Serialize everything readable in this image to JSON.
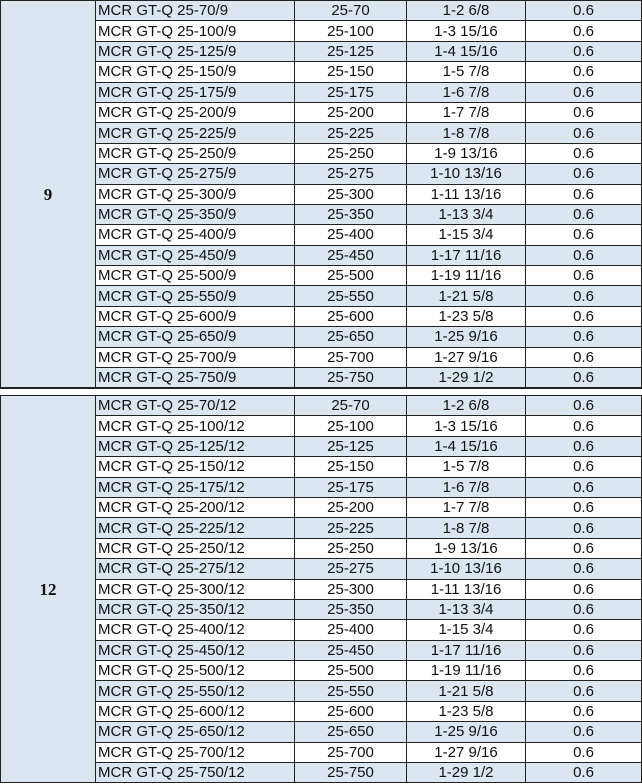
{
  "colors": {
    "row_shade": "#dce6f1",
    "border": "#222222"
  },
  "groups": [
    {
      "label": "9",
      "rows": [
        [
          "MCR GT-Q 25-70/9",
          "25-70",
          "1-2 6/8",
          "0.6"
        ],
        [
          "MCR GT-Q 25-100/9",
          "25-100",
          "1-3 15/16",
          "0.6"
        ],
        [
          "MCR GT-Q 25-125/9",
          "25-125",
          "1-4 15/16",
          "0.6"
        ],
        [
          "MCR GT-Q 25-150/9",
          "25-150",
          "1-5 7/8",
          "0.6"
        ],
        [
          "MCR GT-Q 25-175/9",
          "25-175",
          "1-6 7/8",
          "0.6"
        ],
        [
          "MCR GT-Q 25-200/9",
          "25-200",
          "1-7 7/8",
          "0.6"
        ],
        [
          "MCR GT-Q 25-225/9",
          "25-225",
          "1-8 7/8",
          "0.6"
        ],
        [
          "MCR GT-Q 25-250/9",
          "25-250",
          "1-9 13/16",
          "0.6"
        ],
        [
          "MCR GT-Q 25-275/9",
          "25-275",
          "1-10 13/16",
          "0.6"
        ],
        [
          "MCR GT-Q 25-300/9",
          "25-300",
          "1-11 13/16",
          "0.6"
        ],
        [
          "MCR GT-Q 25-350/9",
          "25-350",
          "1-13 3/4",
          "0.6"
        ],
        [
          "MCR GT-Q 25-400/9",
          "25-400",
          "1-15 3/4",
          "0.6"
        ],
        [
          "MCR GT-Q 25-450/9",
          "25-450",
          "1-17 11/16",
          "0.6"
        ],
        [
          "MCR GT-Q 25-500/9",
          "25-500",
          "1-19 11/16",
          "0.6"
        ],
        [
          "MCR GT-Q 25-550/9",
          "25-550",
          "1-21 5/8",
          "0.6"
        ],
        [
          "MCR GT-Q 25-600/9",
          "25-600",
          "1-23 5/8",
          "0.6"
        ],
        [
          "MCR GT-Q 25-650/9",
          "25-650",
          "1-25 9/16",
          "0.6"
        ],
        [
          "MCR GT-Q 25-700/9",
          "25-700",
          "1-27 9/16",
          "0.6"
        ],
        [
          "MCR GT-Q 25-750/9",
          "25-750",
          "1-29 1/2",
          "0.6"
        ]
      ]
    },
    {
      "label": "12",
      "rows": [
        [
          "MCR GT-Q 25-70/12",
          "25-70",
          "1-2 6/8",
          "0.6"
        ],
        [
          "MCR GT-Q 25-100/12",
          "25-100",
          "1-3 15/16",
          "0.6"
        ],
        [
          "MCR GT-Q 25-125/12",
          "25-125",
          "1-4 15/16",
          "0.6"
        ],
        [
          "MCR GT-Q 25-150/12",
          "25-150",
          "1-5 7/8",
          "0.6"
        ],
        [
          "MCR GT-Q 25-175/12",
          "25-175",
          "1-6 7/8",
          "0.6"
        ],
        [
          "MCR GT-Q 25-200/12",
          "25-200",
          "1-7 7/8",
          "0.6"
        ],
        [
          "MCR GT-Q 25-225/12",
          "25-225",
          "1-8 7/8",
          "0.6"
        ],
        [
          "MCR GT-Q 25-250/12",
          "25-250",
          "1-9 13/16",
          "0.6"
        ],
        [
          "MCR GT-Q 25-275/12",
          "25-275",
          "1-10 13/16",
          "0.6"
        ],
        [
          "MCR GT-Q 25-300/12",
          "25-300",
          "1-11 13/16",
          "0.6"
        ],
        [
          "MCR GT-Q 25-350/12",
          "25-350",
          "1-13 3/4",
          "0.6"
        ],
        [
          "MCR GT-Q 25-400/12",
          "25-400",
          "1-15 3/4",
          "0.6"
        ],
        [
          "MCR GT-Q 25-450/12",
          "25-450",
          "1-17 11/16",
          "0.6"
        ],
        [
          "MCR GT-Q 25-500/12",
          "25-500",
          "1-19 11/16",
          "0.6"
        ],
        [
          "MCR GT-Q 25-550/12",
          "25-550",
          "1-21 5/8",
          "0.6"
        ],
        [
          "MCR GT-Q 25-600/12",
          "25-600",
          "1-23 5/8",
          "0.6"
        ],
        [
          "MCR GT-Q 25-650/12",
          "25-650",
          "1-25 9/16",
          "0.6"
        ],
        [
          "MCR GT-Q 25-700/12",
          "25-700",
          "1-27 9/16",
          "0.6"
        ],
        [
          "MCR GT-Q 25-750/12",
          "25-750",
          "1-29 1/2",
          "0.6"
        ]
      ]
    }
  ]
}
